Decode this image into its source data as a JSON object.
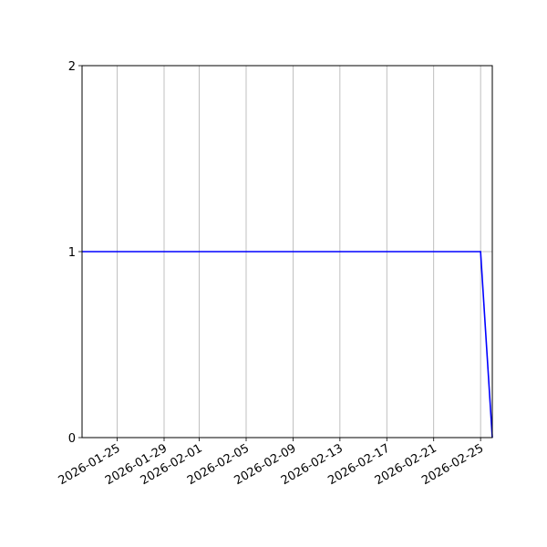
{
  "chart_data": {
    "type": "line",
    "title": "",
    "xlabel": "",
    "ylabel": "",
    "x_type": "date",
    "xlim": [
      "2026-01-22",
      "2026-02-26"
    ],
    "ylim": [
      0,
      2
    ],
    "grid": true,
    "xticks": [
      "2026-01-25",
      "2026-01-29",
      "2026-02-01",
      "2026-02-05",
      "2026-02-09",
      "2026-02-13",
      "2026-02-17",
      "2026-02-21",
      "2026-02-25"
    ],
    "yticks": [
      0,
      1,
      2
    ],
    "series": [
      {
        "color": "#0000ff",
        "x": [
          "2026-01-22",
          "2026-02-25",
          "2026-02-26"
        ],
        "y": [
          1,
          1,
          0
        ]
      }
    ]
  }
}
